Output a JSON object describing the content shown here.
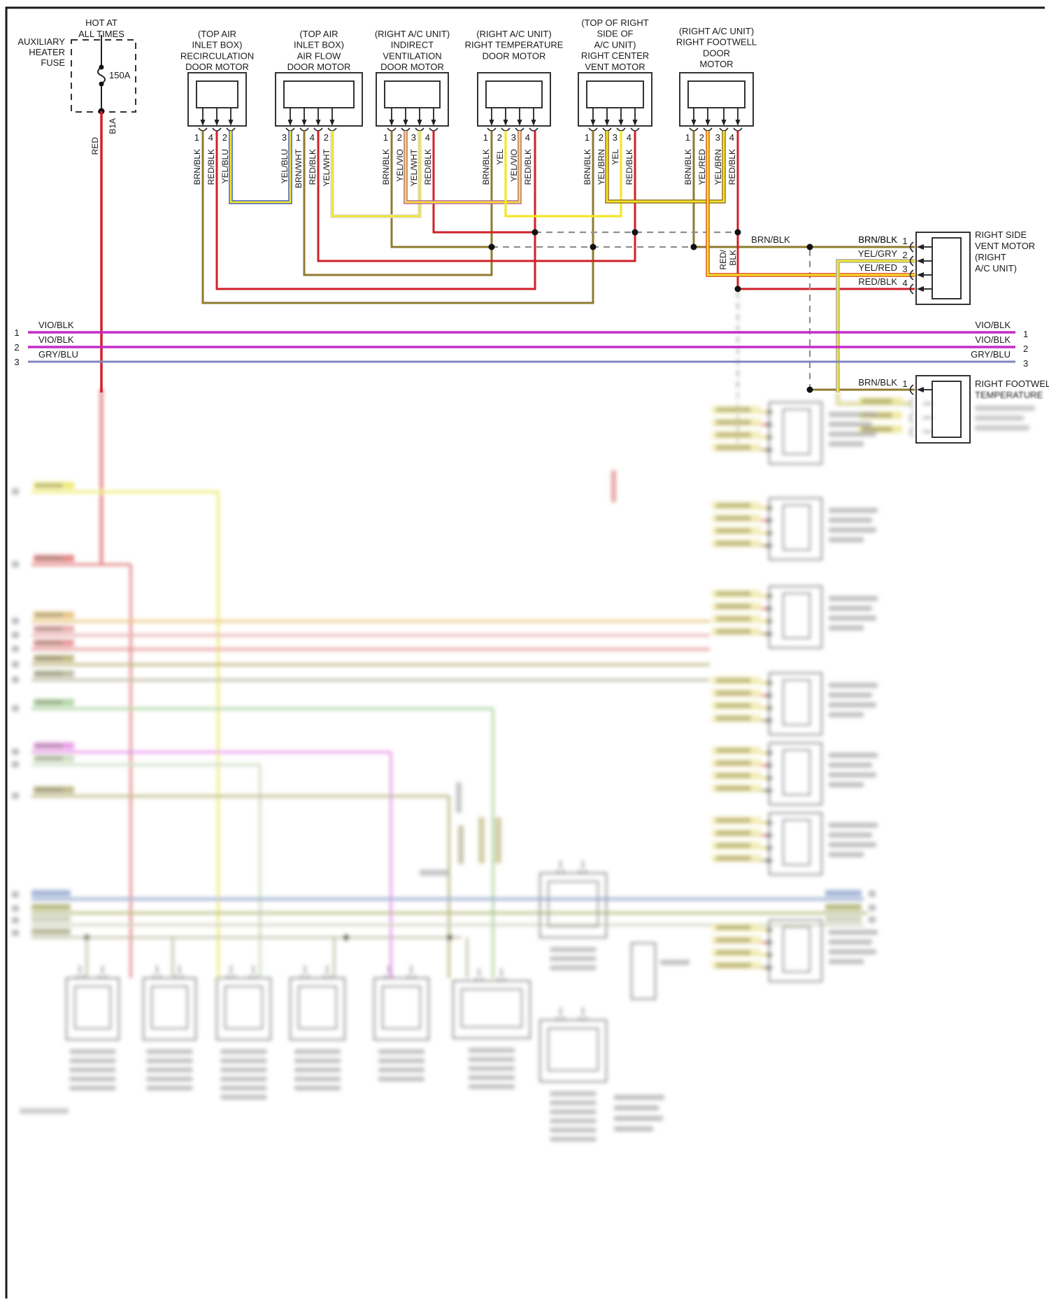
{
  "power": {
    "hot_label_lines": [
      "HOT AT",
      "ALL TIMES"
    ],
    "fuse_name_lines": [
      "AUXILIARY",
      "HEATER",
      "FUSE"
    ],
    "fuse_rating": "150A",
    "circuit_id": "B1A",
    "feed_wire": "RED"
  },
  "top_connectors": [
    {
      "title_lines": [
        "(TOP AIR",
        "INLET BOX)",
        "RECIRCULATION",
        "DOOR MOTOR"
      ],
      "pins": [
        {
          "num": "1",
          "wire": "BRN/BLK"
        },
        {
          "num": "4",
          "wire": "RED/BLK"
        },
        {
          "num": "2",
          "wire": "YEL/BLU"
        }
      ]
    },
    {
      "title_lines": [
        "(TOP AIR",
        "INLET BOX)",
        "AIR FLOW",
        "DOOR MOTOR"
      ],
      "pins": [
        {
          "num": "3",
          "wire": "YEL/BLU"
        },
        {
          "num": "1",
          "wire": "BRN/WHT"
        },
        {
          "num": "4",
          "wire": "RED/BLK"
        },
        {
          "num": "2",
          "wire": "YEL/WHT"
        }
      ]
    },
    {
      "title_lines": [
        "(RIGHT A/C UNIT)",
        "INDIRECT",
        "VENTILATION",
        "DOOR MOTOR"
      ],
      "pins": [
        {
          "num": "1",
          "wire": "BRN/BLK"
        },
        {
          "num": "2",
          "wire": "YEL/VIO"
        },
        {
          "num": "3",
          "wire": "YEL/WHT"
        },
        {
          "num": "4",
          "wire": "RED/BLK"
        }
      ]
    },
    {
      "title_lines": [
        "(RIGHT A/C UNIT)",
        "RIGHT TEMPERATURE",
        "DOOR MOTOR"
      ],
      "pins": [
        {
          "num": "1",
          "wire": "BRN/BLK"
        },
        {
          "num": "2",
          "wire": "YEL"
        },
        {
          "num": "3",
          "wire": "YEL/VIO"
        },
        {
          "num": "4",
          "wire": "RED/BLK"
        }
      ]
    },
    {
      "title_lines": [
        "(TOP OF RIGHT",
        "SIDE OF",
        "A/C UNIT)",
        "RIGHT CENTER",
        "VENT MOTOR"
      ],
      "pins": [
        {
          "num": "1",
          "wire": "BRN/BLK"
        },
        {
          "num": "2",
          "wire": "YEL/BRN"
        },
        {
          "num": "3",
          "wire": "YEL"
        },
        {
          "num": "4",
          "wire": "RED/BLK"
        }
      ]
    },
    {
      "title_lines": [
        "(RIGHT A/C UNIT)",
        "RIGHT FOOTWELL",
        "DOOR",
        "MOTOR"
      ],
      "pins": [
        {
          "num": "1",
          "wire": "BRN/BLK"
        },
        {
          "num": "2",
          "wire": "YEL/RED"
        },
        {
          "num": "3",
          "wire": "YEL/BRN"
        },
        {
          "num": "4",
          "wire": "RED/BLK"
        }
      ]
    }
  ],
  "right_connectors": [
    {
      "title_lines": [
        "RIGHT SIDE",
        "VENT MOTOR",
        "(RIGHT",
        "A/C UNIT)"
      ],
      "pins": [
        {
          "num": "1",
          "wire": "BRN/BLK"
        },
        {
          "num": "2",
          "wire": "YEL/GRY"
        },
        {
          "num": "3",
          "wire": "YEL/RED"
        },
        {
          "num": "4",
          "wire": "RED/BLK"
        }
      ]
    },
    {
      "title_lines": [
        "RIGHT FOOTWELL",
        "TEMPERATURE"
      ],
      "pins": [
        {
          "num": "1",
          "wire": "BRN/BLK"
        }
      ]
    }
  ],
  "splice_labels": {
    "bus_brnblk_a": "BRN/BLK",
    "bus_brnblk_b": "BRN/BLK",
    "redblk_vertical_1": "RED/",
    "redblk_vertical_2": "BLK"
  },
  "interior_buses": {
    "rows": [
      {
        "num": "1",
        "label": "VIO/BLK",
        "color": "#c52cc7"
      },
      {
        "num": "2",
        "label": "VIO/BLK",
        "color": "#c52cc7"
      },
      {
        "num": "3",
        "label": "GRY/BLU",
        "color": "#8186bd"
      }
    ]
  },
  "colors": {
    "brn_blk": "#8f7b2f",
    "red": "#cf2128",
    "yellow": "#f2e72b",
    "yel_blu_edge": "#3b55cc",
    "yel_wht_edge": "#dcdcdc",
    "yel_vio_edge": "#b55ab0",
    "yel_brn_edge": "#96691c",
    "yel_red_edge": "#e0481f",
    "yel_gry_edge": "#a8a8a8",
    "vio_blk": "#c52cc7",
    "gry_blu": "#8186bd",
    "splice_dash": "#8f8f8f"
  }
}
